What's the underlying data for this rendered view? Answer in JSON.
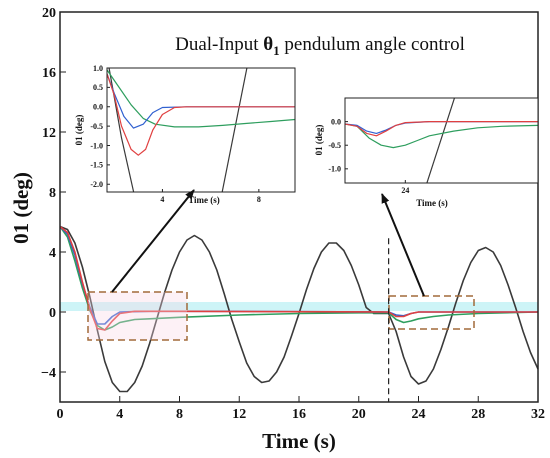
{
  "chart_data": [
    {
      "id": "main",
      "type": "line",
      "title": "Dual-Input θ1 pendulum angle control",
      "title_prefix": "Dual-Input ",
      "title_theta": "θ",
      "title_sub": "1",
      "title_suffix": " pendulum angle control",
      "xlabel": "Time (s)",
      "ylabel": "01 (deg)",
      "xlim": [
        0,
        32
      ],
      "ylim": [
        -6,
        20
      ],
      "xticks": [
        0,
        4,
        8,
        12,
        16,
        20,
        24,
        28,
        32
      ],
      "yticks": [
        -4,
        0,
        4,
        8,
        12,
        16,
        20
      ],
      "ytick_labels": [
        "−4",
        "0",
        "4",
        "8",
        "12",
        "16",
        "20"
      ],
      "grid": false,
      "legend": "none",
      "vline_x": 22,
      "series": [
        {
          "color": "#3a3a3a",
          "points": [
            [
              0,
              5.7
            ],
            [
              0.5,
              5.5
            ],
            [
              1,
              4.6
            ],
            [
              1.5,
              3.0
            ],
            [
              2,
              1.0
            ],
            [
              2.5,
              -1.2
            ],
            [
              3,
              -3.3
            ],
            [
              3.5,
              -4.7
            ],
            [
              4,
              -5.3
            ],
            [
              4.5,
              -5.3
            ],
            [
              5,
              -4.7
            ],
            [
              5.5,
              -3.6
            ],
            [
              6,
              -2.1
            ],
            [
              6.5,
              -0.4
            ],
            [
              7,
              1.3
            ],
            [
              7.5,
              2.8
            ],
            [
              8,
              4.0
            ],
            [
              8.5,
              4.8
            ],
            [
              9,
              5.1
            ],
            [
              9.5,
              4.8
            ],
            [
              10,
              4.0
            ],
            [
              10.5,
              2.8
            ],
            [
              11,
              1.2
            ],
            [
              11.5,
              -0.5
            ],
            [
              12,
              -2.0
            ],
            [
              12.5,
              -3.4
            ],
            [
              13,
              -4.3
            ],
            [
              13.5,
              -4.7
            ],
            [
              14,
              -4.6
            ],
            [
              14.5,
              -4.0
            ],
            [
              15,
              -3.0
            ],
            [
              15.5,
              -1.6
            ],
            [
              16,
              -0.1
            ],
            [
              16.5,
              1.5
            ],
            [
              17,
              2.9
            ],
            [
              17.5,
              4.0
            ],
            [
              18,
              4.6
            ],
            [
              18.5,
              4.6
            ],
            [
              19,
              4.1
            ],
            [
              19.5,
              3.1
            ],
            [
              20,
              1.8
            ],
            [
              20.5,
              0.3
            ],
            [
              21,
              -0.1
            ],
            [
              21.5,
              -0.1
            ],
            [
              22,
              -0.1
            ],
            [
              22.5,
              -1.3
            ],
            [
              23,
              -3.0
            ],
            [
              23.5,
              -4.3
            ],
            [
              24,
              -4.8
            ],
            [
              24.5,
              -4.6
            ],
            [
              25,
              -3.8
            ],
            [
              25.5,
              -2.5
            ],
            [
              26,
              -1.0
            ],
            [
              26.5,
              0.6
            ],
            [
              27,
              2.1
            ],
            [
              27.5,
              3.3
            ],
            [
              28,
              4.1
            ],
            [
              28.5,
              4.3
            ],
            [
              29,
              4.0
            ],
            [
              29.5,
              3.1
            ],
            [
              30,
              1.8
            ],
            [
              30.5,
              0.3
            ],
            [
              31,
              -1.3
            ],
            [
              31.5,
              -2.7
            ],
            [
              32,
              -3.8
            ]
          ]
        },
        {
          "color": "#2e9e5e",
          "points": [
            [
              0,
              5.7
            ],
            [
              0.5,
              5.0
            ],
            [
              1,
              3.4
            ],
            [
              1.5,
              1.6
            ],
            [
              2,
              0.1
            ],
            [
              2.5,
              -0.9
            ],
            [
              3,
              -1.2
            ],
            [
              3.5,
              -1.0
            ],
            [
              4,
              -0.7
            ],
            [
              5,
              -0.5
            ],
            [
              6,
              -0.45
            ],
            [
              8,
              -0.35
            ],
            [
              12,
              -0.2
            ],
            [
              16,
              -0.1
            ],
            [
              20,
              -0.05
            ],
            [
              22,
              -0.05
            ],
            [
              22.5,
              -0.5
            ],
            [
              23,
              -0.7
            ],
            [
              23.5,
              -0.6
            ],
            [
              24,
              -0.45
            ],
            [
              25,
              -0.3
            ],
            [
              26,
              -0.2
            ],
            [
              28,
              -0.1
            ],
            [
              32,
              0
            ]
          ]
        },
        {
          "color": "#3060d0",
          "points": [
            [
              0,
              5.7
            ],
            [
              0.5,
              5.2
            ],
            [
              1,
              3.8
            ],
            [
              1.5,
              1.9
            ],
            [
              2,
              0.3
            ],
            [
              2.5,
              -0.8
            ],
            [
              3,
              -0.8
            ],
            [
              3.5,
              -0.3
            ],
            [
              4,
              0
            ],
            [
              6,
              0.05
            ],
            [
              10,
              0.05
            ],
            [
              16,
              0.02
            ],
            [
              22,
              0.0
            ],
            [
              22.5,
              -0.2
            ],
            [
              23,
              -0.25
            ],
            [
              23.5,
              -0.1
            ],
            [
              24,
              0
            ],
            [
              32,
              0
            ]
          ]
        },
        {
          "color": "#e04040",
          "points": [
            [
              0,
              5.7
            ],
            [
              0.5,
              5.3
            ],
            [
              1,
              4.0
            ],
            [
              1.5,
              2.0
            ],
            [
              2,
              0.2
            ],
            [
              2.5,
              -1.1
            ],
            [
              3,
              -1.2
            ],
            [
              3.5,
              -0.6
            ],
            [
              4,
              -0.1
            ],
            [
              5,
              0.05
            ],
            [
              8,
              0.05
            ],
            [
              16,
              0.02
            ],
            [
              22,
              0.0
            ],
            [
              22.5,
              -0.3
            ],
            [
              23,
              -0.3
            ],
            [
              23.5,
              -0.1
            ],
            [
              24,
              0
            ],
            [
              32,
              0
            ]
          ]
        }
      ]
    },
    {
      "id": "inset1",
      "type": "line",
      "xlabel": "Time (s)",
      "ylabel": "01 (deg)",
      "xlim": [
        1.7,
        9.5
      ],
      "ylim": [
        -2.2,
        1.0
      ],
      "xticks": [
        4,
        8
      ],
      "yticks": [
        1.0,
        0.5,
        0.0,
        -0.5,
        -1.0,
        -1.5,
        -2.0
      ],
      "ytick_labels": [
        "1.0",
        "0.5",
        "0.0",
        "-0.5",
        "-1.0",
        "-1.5",
        "-2.0"
      ],
      "series": [
        {
          "color": "#3a3a3a",
          "points": [
            [
              1.7,
              1.3
            ],
            [
              2.3,
              -0.8
            ],
            [
              2.95,
              -2.6
            ]
          ]
        },
        {
          "color": "#3a3a3a",
          "points": [
            [
              6.35,
              -2.6
            ],
            [
              7.6,
              1.3
            ]
          ]
        },
        {
          "color": "#2e9e5e",
          "points": [
            [
              1.7,
              0.95
            ],
            [
              2.2,
              0.5
            ],
            [
              2.7,
              0.05
            ],
            [
              3.2,
              -0.3
            ],
            [
              3.7,
              -0.45
            ],
            [
              4.5,
              -0.52
            ],
            [
              5.5,
              -0.52
            ],
            [
              6.5,
              -0.48
            ],
            [
              7.5,
              -0.43
            ],
            [
              8.5,
              -0.38
            ],
            [
              9.5,
              -0.33
            ]
          ]
        },
        {
          "color": "#3060d0",
          "points": [
            [
              1.7,
              0.85
            ],
            [
              2.0,
              0.35
            ],
            [
              2.4,
              -0.25
            ],
            [
              2.8,
              -0.55
            ],
            [
              3.2,
              -0.45
            ],
            [
              3.6,
              -0.15
            ],
            [
              4.0,
              -0.02
            ],
            [
              5,
              0
            ],
            [
              9.5,
              0
            ]
          ]
        },
        {
          "color": "#e04040",
          "points": [
            [
              1.7,
              0.85
            ],
            [
              2.0,
              0.3
            ],
            [
              2.3,
              -0.5
            ],
            [
              2.7,
              -1.1
            ],
            [
              3.0,
              -1.25
            ],
            [
              3.3,
              -1.1
            ],
            [
              3.6,
              -0.6
            ],
            [
              4.0,
              -0.2
            ],
            [
              4.5,
              -0.02
            ],
            [
              5,
              0
            ],
            [
              9.5,
              0
            ]
          ]
        }
      ]
    },
    {
      "id": "inset2",
      "type": "line",
      "xlabel": "Time (s)",
      "ylabel": "01 (deg)",
      "xlim": [
        21.5,
        29.5
      ],
      "ylim": [
        -1.3,
        0.5
      ],
      "xticks": [
        24
      ],
      "yticks": [
        0.0,
        -0.5,
        -1.0
      ],
      "ytick_labels": [
        "0.0",
        "-0.5",
        "-1.0"
      ],
      "series": [
        {
          "color": "#3a3a3a",
          "points": [
            [
              24.8,
              -1.45
            ],
            [
              26.1,
              0.6
            ]
          ]
        },
        {
          "color": "#2e9e5e",
          "points": [
            [
              21.5,
              -0.05
            ],
            [
              22,
              -0.1
            ],
            [
              22.5,
              -0.35
            ],
            [
              23,
              -0.5
            ],
            [
              23.5,
              -0.55
            ],
            [
              24,
              -0.5
            ],
            [
              24.5,
              -0.4
            ],
            [
              25,
              -0.3
            ],
            [
              26,
              -0.2
            ],
            [
              27,
              -0.13
            ],
            [
              28,
              -0.1
            ],
            [
              29.5,
              -0.08
            ]
          ]
        },
        {
          "color": "#3060d0",
          "points": [
            [
              21.5,
              -0.05
            ],
            [
              22,
              -0.08
            ],
            [
              22.4,
              -0.2
            ],
            [
              22.8,
              -0.25
            ],
            [
              23.2,
              -0.18
            ],
            [
              23.6,
              -0.08
            ],
            [
              24,
              -0.03
            ],
            [
              25,
              0
            ],
            [
              29.5,
              0
            ]
          ]
        },
        {
          "color": "#e04040",
          "points": [
            [
              21.5,
              -0.05
            ],
            [
              22,
              -0.1
            ],
            [
              22.4,
              -0.25
            ],
            [
              22.8,
              -0.3
            ],
            [
              23.2,
              -0.2
            ],
            [
              23.6,
              -0.08
            ],
            [
              24,
              -0.02
            ],
            [
              25,
              0
            ],
            [
              29.5,
              0
            ]
          ]
        }
      ]
    }
  ]
}
